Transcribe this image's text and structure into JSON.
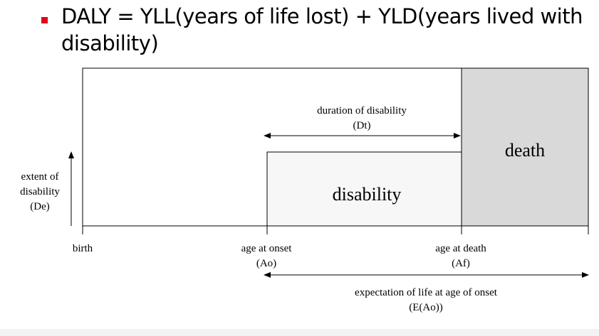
{
  "headline": {
    "line1": "DALY = YLL(years of life lost) + YLD(years lived with",
    "line2": "disability)"
  },
  "diagram": {
    "death_label": "death",
    "disability_label": "disability",
    "duration": {
      "line1": "duration of disability",
      "line2": "(Dt)"
    },
    "extent": {
      "line1": "extent of",
      "line2": "disability",
      "line3": "(De)"
    },
    "axis_labels": {
      "birth": "birth",
      "onset_line1": "age at onset",
      "onset_line2": "(Ao)",
      "death_line1": "age at death",
      "death_line2": "(Af)"
    },
    "expectation": {
      "line1": "expectation of life at age of onset",
      "line2": "(E(Ao))"
    }
  },
  "colors": {
    "bullet": "#e2001a",
    "death_fill": "#d9d9d9",
    "disability_fill": "#f7f7f7"
  }
}
